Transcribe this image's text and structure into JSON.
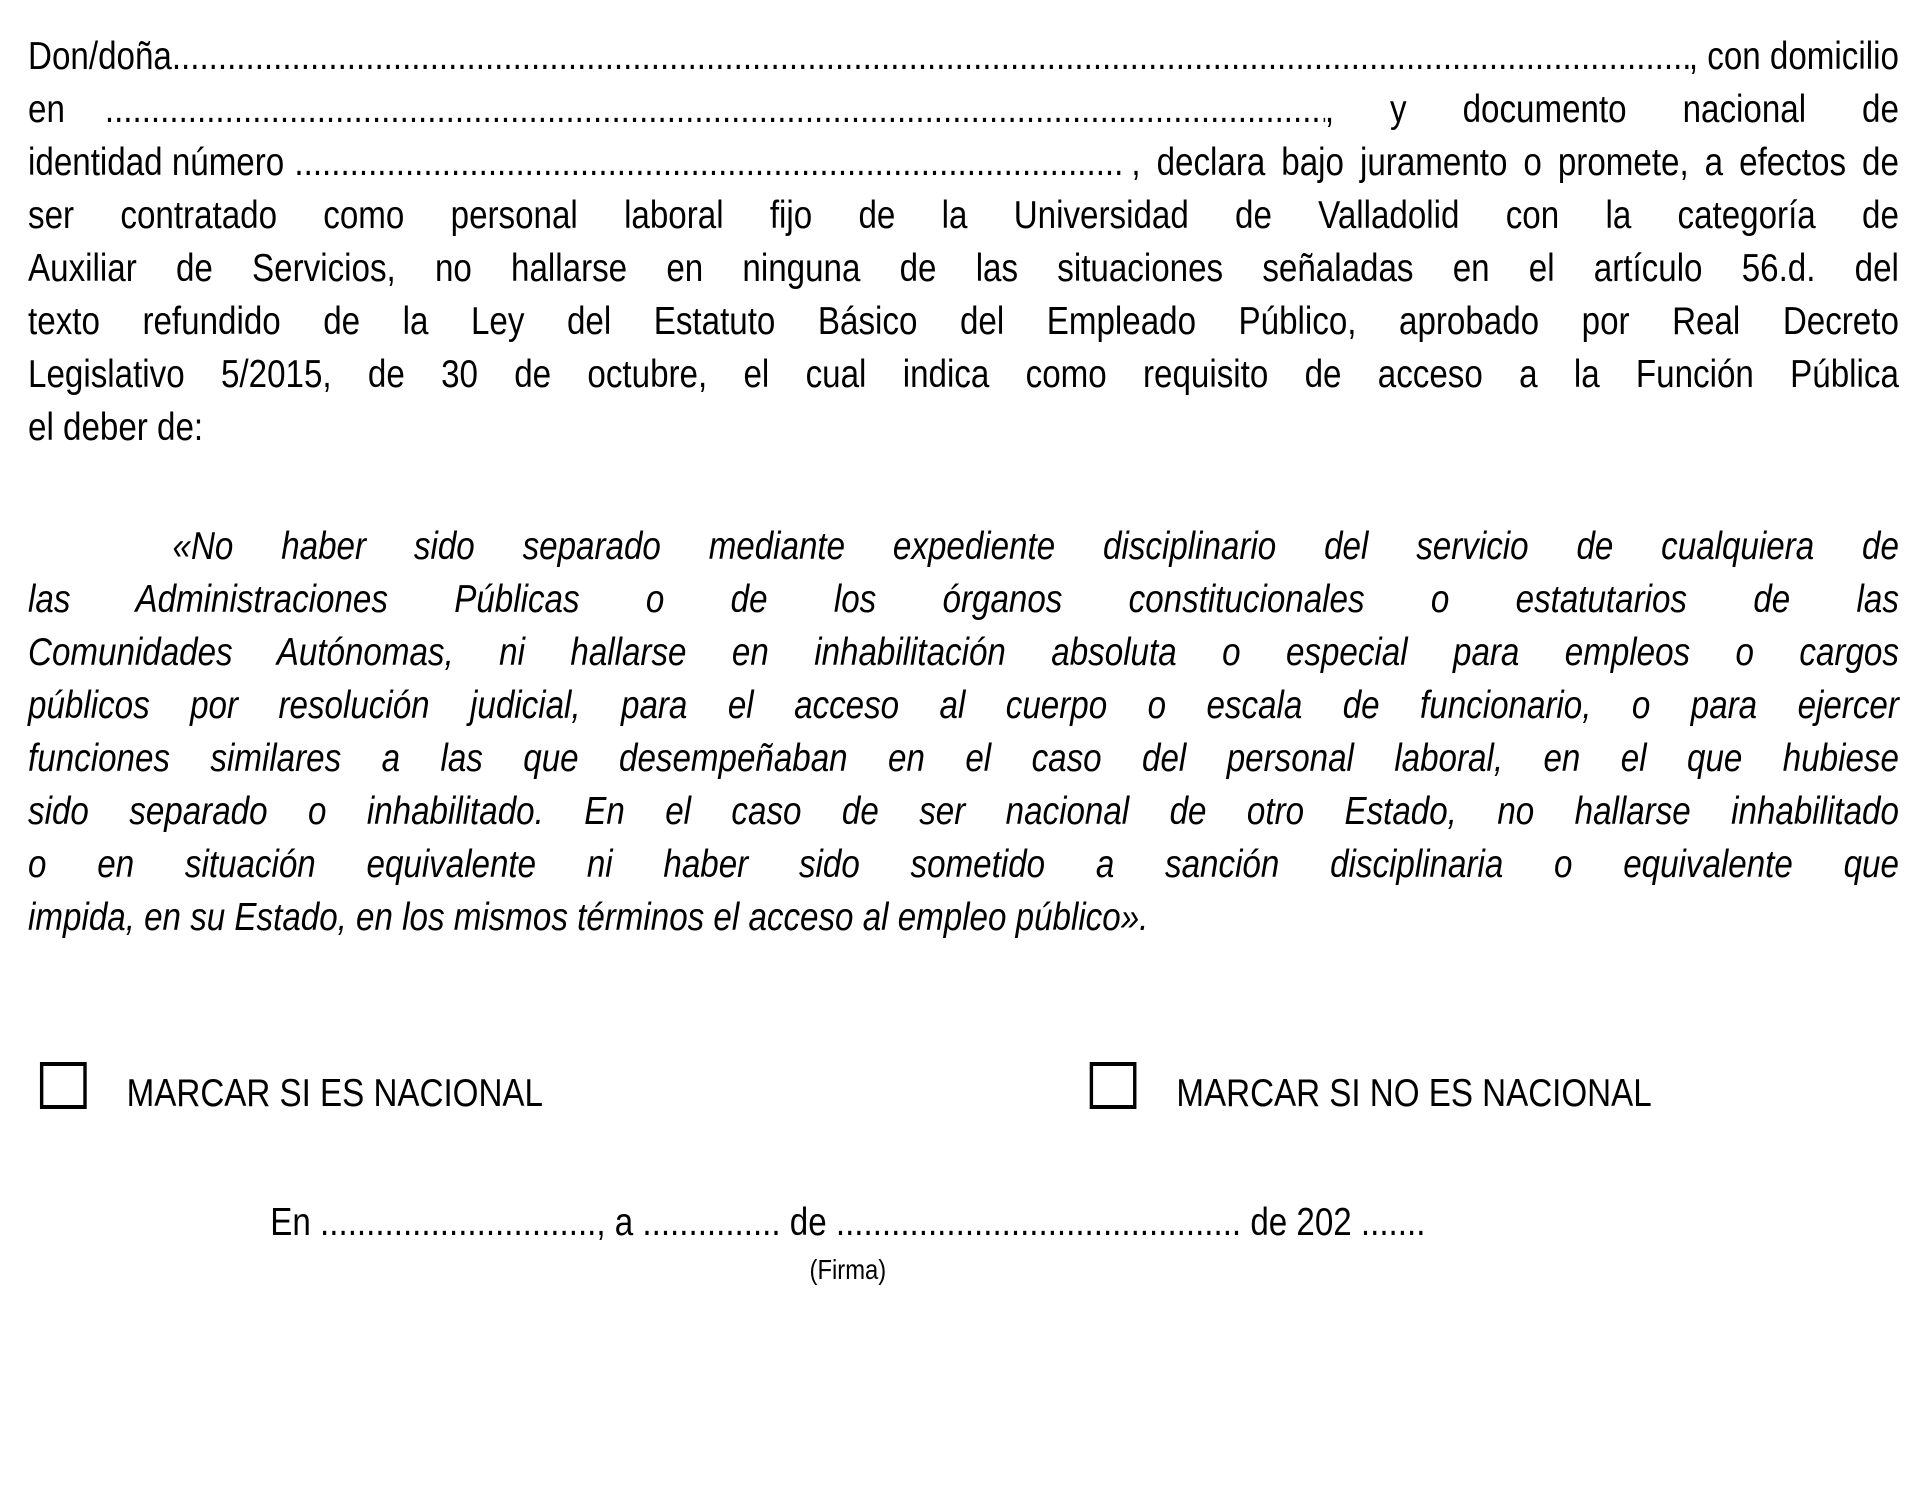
{
  "page": {
    "background": "#ffffff",
    "text_color": "#000000"
  },
  "declaration": {
    "line1": {
      "prefix": "Don/doña",
      "dots": "..........................................................................................................................................................................",
      "suffix": ", con domicilio"
    },
    "line2": {
      "prefix": "en",
      "dots": "......................................................................................................................................................",
      "suffix": ", y documento nacional de"
    },
    "line3": {
      "prefix": "identidad número",
      "dots": "..........................................................................................",
      "suffix": ", declara bajo juramento o promete, a efectos de"
    },
    "body_lines": [
      "ser contratado como personal laboral fijo de la Universidad de Valladolid con la categoría de",
      "Auxiliar de Servicios, no hallarse en ninguna de las situaciones señaladas en el artículo 56.d. del",
      "texto refundido de la Ley del Estatuto Básico del Empleado Público, aprobado por Real Decreto",
      "Legislativo 5/2015, de 30 de octubre, el cual indica como requisito de acceso a la Función Pública",
      "el deber de:"
    ],
    "quote_lines": [
      "«No haber sido separado mediante expediente disciplinario del servicio de cualquiera de",
      "las Administraciones Públicas o de los órganos constitucionales o estatutarios de las",
      "Comunidades Autónomas, ni hallarse en inhabilitación absoluta o especial para empleos o cargos",
      "públicos por resolución judicial, para el acceso al cuerpo o escala de funcionario, o para ejercer",
      "funciones similares a las que desempeñaban en el caso del personal laboral, en el que hubiese",
      "sido separado o inhabilitado. En el caso de ser nacional de otro Estado, no hallarse inhabilitado",
      "o en situación equivalente ni haber sido sometido a sanción disciplinaria o equivalente que",
      "impida, en su Estado, en los mismos términos el acceso al empleo público»."
    ]
  },
  "checkboxes": {
    "national": {
      "label": "MARCAR SI ES NACIONAL",
      "checked": false
    },
    "not_national": {
      "label": "MARCAR SI NO ES NACIONAL",
      "checked": false
    }
  },
  "footer": {
    "date_line": "En .............................., a ............... de ............................................ de 202 .......",
    "signature_label": "(Firma)"
  }
}
